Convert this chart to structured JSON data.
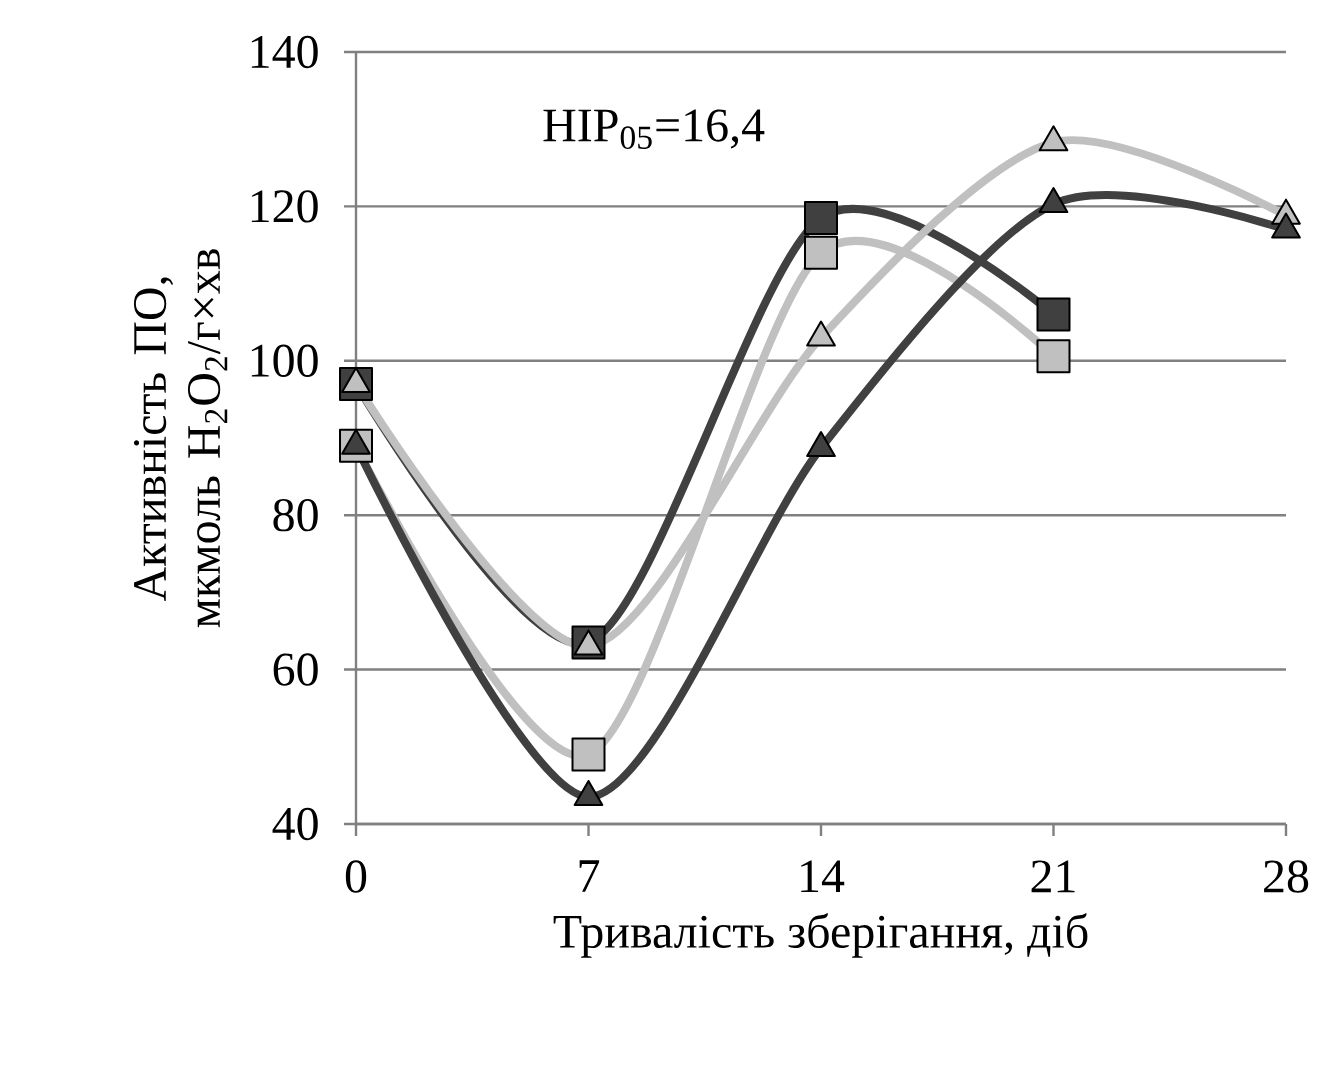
{
  "chart_data": {
    "type": "line",
    "xlabel": "Тривалість зберігання, діб",
    "ylabel": "Активність ПО, мкмоль H$_{2}$O$_{2}$/г×хв",
    "annotations": [
      "HIP$_{05}$=16,4"
    ],
    "x": [
      0,
      7,
      14,
      21,
      28
    ],
    "series": [
      {
        "color": "#404040",
        "marker": "square",
        "values": [
          97,
          63.5,
          118.5,
          106,
          null
        ]
      },
      {
        "color": "#c0c0c0",
        "marker": "square",
        "values": [
          89,
          49,
          114,
          100.6,
          null
        ]
      },
      {
        "color": "#c0c0c0",
        "marker": "triangle",
        "values": [
          97,
          63,
          103,
          128.3,
          118.8
        ]
      },
      {
        "color": "#404040",
        "marker": "triangle",
        "values": [
          89,
          43.5,
          88.7,
          120.3,
          117
        ]
      }
    ],
    "xlim": [
      0,
      28
    ],
    "ylim": [
      40,
      140
    ],
    "xticks": [
      0,
      7,
      14,
      21,
      28
    ],
    "yticks": [
      40,
      60,
      80,
      100,
      120,
      140
    ],
    "grid": "y"
  }
}
